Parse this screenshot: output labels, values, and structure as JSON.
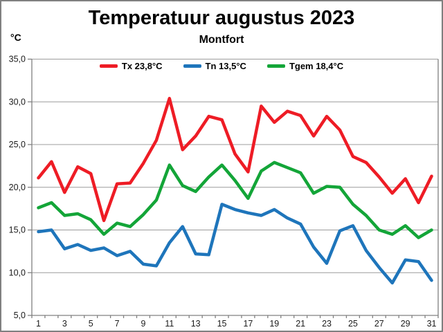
{
  "title": "Temperatuur augustus 2023",
  "subtitle": "Montfort",
  "y_axis_unit": "°C",
  "chart_data": {
    "type": "line",
    "title": "Temperatuur augustus 2023",
    "subtitle": "Montfort",
    "ylabel": "°C",
    "xlabel": "",
    "grid": true,
    "legend_position": "top-center-inside",
    "ylim": [
      5,
      35
    ],
    "ytick_step": 5,
    "y_tick_labels": [
      "35,0",
      "30,0",
      "25,0",
      "20,0",
      "15,0",
      "10,0",
      "5,0"
    ],
    "x_tick_labels": [
      "1",
      "3",
      "5",
      "7",
      "9",
      "11",
      "13",
      "15",
      "17",
      "19",
      "21",
      "23",
      "25",
      "27",
      "29",
      "31"
    ],
    "categories": [
      1,
      2,
      3,
      4,
      5,
      6,
      7,
      8,
      9,
      10,
      11,
      12,
      13,
      14,
      15,
      16,
      17,
      18,
      19,
      20,
      21,
      22,
      23,
      24,
      25,
      26,
      27,
      28,
      29,
      30,
      31
    ],
    "series": [
      {
        "name": "Tx",
        "legend_label": "Tx 23,8°C",
        "mean": "23,8",
        "color": "#ee1c25",
        "values": [
          21.1,
          23.0,
          19.4,
          22.4,
          21.6,
          16.1,
          20.4,
          20.5,
          22.8,
          25.5,
          30.4,
          24.4,
          26.0,
          28.3,
          27.9,
          23.9,
          21.8,
          29.5,
          27.6,
          28.9,
          28.4,
          26.0,
          28.3,
          26.7,
          23.6,
          22.9,
          21.2,
          19.3,
          21.0,
          18.2,
          21.3
        ]
      },
      {
        "name": "Tn",
        "legend_label": "Tn 13,5°C",
        "mean": "13,5",
        "color": "#1e75bb",
        "values": [
          14.8,
          15.0,
          12.8,
          13.3,
          12.6,
          12.9,
          12.0,
          12.5,
          11.0,
          10.8,
          13.5,
          15.4,
          12.2,
          12.1,
          18.0,
          17.4,
          17.0,
          16.7,
          17.4,
          16.4,
          15.7,
          13.0,
          11.1,
          14.9,
          15.5,
          12.6,
          10.6,
          8.8,
          11.5,
          11.3,
          9.1
        ]
      },
      {
        "name": "Tgem",
        "legend_label": "Tgem 18,4°C",
        "mean": "18,4",
        "color": "#13a538",
        "values": [
          17.6,
          18.2,
          16.7,
          16.9,
          16.2,
          14.5,
          15.8,
          15.4,
          16.8,
          18.5,
          22.6,
          20.2,
          19.5,
          21.2,
          22.6,
          20.8,
          18.7,
          21.9,
          22.9,
          22.3,
          21.7,
          19.3,
          20.1,
          20.0,
          18.0,
          16.7,
          15.0,
          14.5,
          15.5,
          14.1,
          15.0
        ]
      }
    ]
  }
}
